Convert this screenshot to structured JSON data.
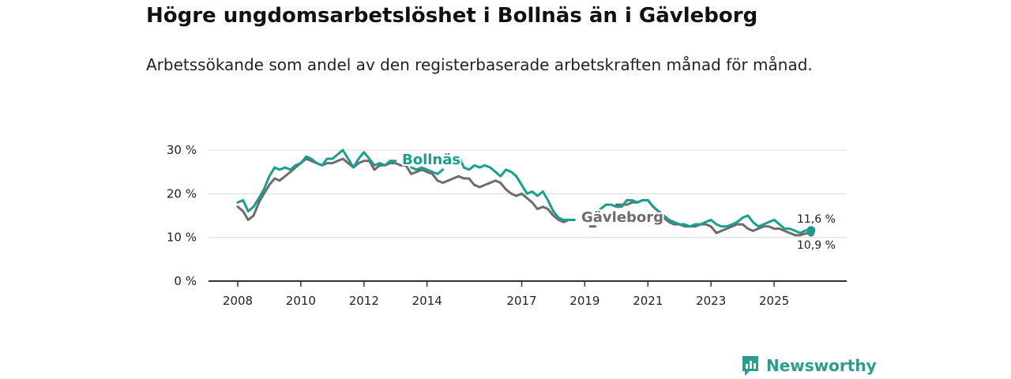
{
  "header": {
    "title": "Högre ungdomsarbetslöshet i Bollnäs än i Gävleborg",
    "subtitle": "Arbetssökande som andel av den registerbaserade arbetskraften månad för månad."
  },
  "brand": {
    "name": "Newsworthy"
  },
  "colors": {
    "bollnas": "#1a9e8f",
    "gavleborg": "#6d6d6d",
    "grid": "#d9d9d9",
    "axis": "#333333"
  },
  "chart_data": {
    "type": "line",
    "title": "Högre ungdomsarbetslöshet i Bollnäs än i Gävleborg",
    "xlabel": "",
    "ylabel": "",
    "xlim": [
      2008.0,
      2026.5
    ],
    "ylim": [
      0,
      30
    ],
    "yticks": [
      0,
      10,
      20,
      30
    ],
    "ytick_labels": [
      "0 %",
      "10 %",
      "20 %",
      "30 %"
    ],
    "xticks": [
      2008,
      2010,
      2012,
      2014,
      2017,
      2019,
      2021,
      2023,
      2025
    ],
    "xtick_labels": [
      "2008",
      "2010",
      "2012",
      "2014",
      "2017",
      "2019",
      "2021",
      "2023",
      "2025"
    ],
    "grid": true,
    "series": [
      {
        "name": "Bollnäs",
        "label": "Bollnäs",
        "end_label": "11,6 %",
        "x": [
          2008.0,
          2008.17,
          2008.33,
          2008.5,
          2008.67,
          2008.83,
          2009.0,
          2009.17,
          2009.33,
          2009.5,
          2009.67,
          2009.83,
          2010.0,
          2010.17,
          2010.33,
          2010.5,
          2010.67,
          2010.83,
          2011.0,
          2011.17,
          2011.33,
          2011.5,
          2011.67,
          2011.83,
          2012.0,
          2012.17,
          2012.33,
          2012.5,
          2012.67,
          2012.83,
          2013.0,
          null,
          2013.5,
          2013.67,
          2013.83,
          2014.0,
          2014.17,
          2014.33,
          2014.5,
          null,
          2015.0,
          2015.17,
          2015.33,
          2015.5,
          2015.67,
          2015.83,
          2016.0,
          2016.17,
          2016.33,
          2016.5,
          2016.67,
          2016.83,
          2017.0,
          2017.17,
          2017.33,
          2017.5,
          2017.67,
          2017.83,
          2018.0,
          2018.17,
          2018.33,
          2018.5,
          2018.67,
          null,
          2019.33,
          2019.5,
          2019.67,
          2019.83,
          2020.0,
          2020.17,
          2020.33,
          2020.5,
          2020.67,
          2020.83,
          2021.0,
          2021.17,
          2021.33,
          2021.5,
          2021.67,
          2021.83,
          2022.0,
          2022.17,
          2022.33,
          2022.5,
          2022.67,
          2022.83,
          2023.0,
          2023.17,
          2023.33,
          2023.5,
          2023.67,
          2023.83,
          2024.0,
          2024.17,
          2024.33,
          2024.5,
          2024.67,
          2024.83,
          2025.0,
          2025.17,
          2025.33,
          2025.5,
          2025.67,
          2025.83,
          2026.0,
          2026.17
        ],
        "values": [
          18,
          18.5,
          16,
          17,
          19,
          21,
          24,
          26,
          25.5,
          26,
          25.5,
          26.5,
          27,
          28.5,
          28,
          27,
          26.5,
          28,
          28,
          29,
          30,
          28,
          26,
          28,
          29.5,
          28,
          26.5,
          27,
          26.5,
          27.5,
          27.5,
          null,
          26,
          25.5,
          26,
          25.5,
          25,
          24.5,
          25.5,
          null,
          28.5,
          26,
          25.5,
          26.5,
          26,
          26.5,
          26,
          25,
          24,
          25.5,
          25,
          24,
          22,
          20,
          20.5,
          19.5,
          20.5,
          18.5,
          16,
          14.5,
          14,
          14,
          14,
          null,
          15.5,
          16.5,
          17.5,
          17.5,
          17,
          17,
          18.5,
          18.5,
          18,
          18.5,
          18.5,
          17,
          16,
          15,
          14,
          13.5,
          13,
          13,
          12.5,
          13,
          13,
          13.5,
          14,
          13,
          12.5,
          12.5,
          13,
          13.5,
          14.5,
          15,
          13.5,
          12.5,
          13,
          13.5,
          14,
          13,
          12,
          12,
          11.5,
          11,
          11.6,
          11.6
        ]
      },
      {
        "name": "Gävleborg",
        "label": "Gävleborg",
        "end_label": "10,9 %",
        "x": [
          2008.0,
          2008.17,
          2008.33,
          2008.5,
          2008.67,
          2008.83,
          2009.0,
          2009.17,
          2009.33,
          2009.5,
          2009.67,
          2009.83,
          2010.0,
          2010.17,
          2010.33,
          2010.5,
          2010.67,
          2010.83,
          2011.0,
          2011.17,
          2011.33,
          2011.5,
          2011.67,
          2011.83,
          2012.0,
          2012.17,
          2012.33,
          2012.5,
          2012.67,
          2012.83,
          2013.0,
          2013.17,
          2013.33,
          2013.5,
          2013.67,
          2013.83,
          2014.0,
          2014.17,
          2014.33,
          2014.5,
          2014.67,
          2014.83,
          2015.0,
          2015.17,
          2015.33,
          2015.5,
          2015.67,
          2015.83,
          2016.0,
          2016.17,
          2016.33,
          2016.5,
          2016.67,
          2016.83,
          2017.0,
          2017.17,
          2017.33,
          2017.5,
          2017.67,
          2017.83,
          2018.0,
          2018.17,
          2018.33,
          2018.5,
          2018.67,
          null,
          2019.17,
          2019.33,
          null,
          2020.0,
          2020.17,
          2020.33,
          2020.5,
          2020.67,
          2020.83,
          2021.0,
          2021.17,
          2021.33,
          2021.5,
          2021.67,
          2021.83,
          2022.0,
          2022.17,
          2022.33,
          2022.5,
          2022.67,
          2022.83,
          2023.0,
          2023.17,
          2023.33,
          2023.5,
          2023.67,
          2023.83,
          2024.0,
          2024.17,
          2024.33,
          2024.5,
          2024.67,
          2024.83,
          2025.0,
          2025.17,
          2025.33,
          2025.5,
          2025.67,
          2025.83,
          2026.0,
          2026.17
        ],
        "values": [
          17,
          16,
          14,
          15,
          18,
          20,
          22,
          23.5,
          23,
          24,
          25,
          26,
          27,
          28,
          27.5,
          27,
          26.5,
          27,
          27,
          27.5,
          28,
          27,
          26,
          27,
          27.5,
          27.5,
          25.5,
          26.5,
          26.5,
          27,
          27,
          26.5,
          26.5,
          24.5,
          25,
          25.5,
          25,
          24.5,
          23,
          22.5,
          23,
          23.5,
          24,
          23.5,
          23.5,
          22,
          21.5,
          22,
          22.5,
          23,
          22.5,
          21,
          20,
          19.5,
          20,
          19,
          18,
          16.5,
          17,
          16.5,
          15,
          14,
          13.5,
          14,
          14,
          null,
          12.5,
          12.5,
          null,
          17.5,
          17.5,
          17.5,
          18,
          18,
          18.5,
          18.5,
          17,
          16,
          14.5,
          13.5,
          13,
          13,
          12.5,
          12.5,
          12.5,
          13,
          13,
          12.5,
          11,
          11.5,
          12,
          12.5,
          13,
          13,
          12,
          11.5,
          12,
          12.5,
          12.5,
          12,
          12,
          11.5,
          11,
          10.5,
          10.5,
          10.9,
          10.9
        ]
      }
    ]
  }
}
